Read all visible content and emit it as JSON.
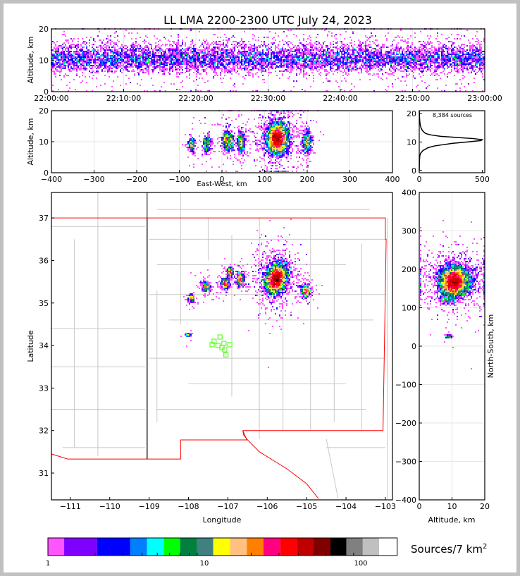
{
  "chart_data": {
    "type": "scatter",
    "title": "LL LMA 2200-2300 UTC July 24, 2023",
    "total_sources_label": "8,384 sources",
    "panels": {
      "time_height": {
        "xlabel": "",
        "ylabel": "Altitude, km",
        "ylim": [
          0,
          20
        ],
        "xlim_minutes": [
          0,
          60
        ],
        "xticks": [
          "22:00:00",
          "22:10:00",
          "22:20:00",
          "22:30:00",
          "22:40:00",
          "22:50:00",
          "23:00:00"
        ],
        "yticks": [
          "0",
          "10",
          "20"
        ]
      },
      "ew_height": {
        "xlabel": "East-West, km",
        "ylabel": "Altitude, km",
        "xlim": [
          -400,
          400
        ],
        "ylim": [
          0,
          20
        ],
        "xticks": [
          "−400",
          "−300",
          "−200",
          "−100",
          "0",
          "100",
          "200",
          "300",
          "400"
        ],
        "yticks": [
          "0",
          "10",
          "20"
        ]
      },
      "alt_histogram": {
        "xlim": [
          0,
          520
        ],
        "ylim": [
          -0.8,
          21
        ],
        "xticks": [
          "0",
          "500"
        ],
        "yticks": [
          "0",
          "10",
          "20"
        ],
        "curve": [
          [
            0,
            0
          ],
          [
            3,
            1
          ],
          [
            5,
            4
          ],
          [
            6,
            10
          ],
          [
            7,
            30
          ],
          [
            8,
            70
          ],
          [
            8.6,
            120
          ],
          [
            9,
            180
          ],
          [
            9.5,
            260
          ],
          [
            10,
            380
          ],
          [
            10.5,
            490
          ],
          [
            10.8,
            500
          ],
          [
            11.2,
            430
          ],
          [
            11.6,
            300
          ],
          [
            12,
            170
          ],
          [
            12.5,
            90
          ],
          [
            13,
            50
          ],
          [
            14,
            25
          ],
          [
            15,
            14
          ],
          [
            16,
            8
          ],
          [
            17,
            5
          ],
          [
            18,
            3
          ],
          [
            19,
            2
          ],
          [
            20,
            1
          ],
          [
            21,
            0
          ]
        ]
      },
      "plan_view": {
        "xlabel": "Longitude",
        "ylabel": "Latitude",
        "xlim": [
          -111.48,
          -102.82
        ],
        "ylim": [
          30.37,
          37.6
        ],
        "xticks": [
          "−111",
          "−110",
          "−109",
          "−108",
          "−107",
          "−106",
          "−105",
          "−104",
          "−103"
        ],
        "yticks": [
          "31",
          "32",
          "33",
          "34",
          "35",
          "36",
          "37"
        ]
      },
      "height_ns": {
        "xlabel": "Altitude, km",
        "ylabel": "North-South, km",
        "xlim": [
          0,
          20
        ],
        "ylim": [
          -400,
          400
        ],
        "xticks": [
          "0",
          "10",
          "20"
        ],
        "yticks": [
          "−400",
          "−300",
          "−200",
          "−100",
          "0",
          "100",
          "200",
          "300",
          "400"
        ]
      }
    },
    "network_center": {
      "lon": -107.18,
      "lat": 34.02
    },
    "stations": [
      [
        -107.2,
        34.2
      ],
      [
        -107.35,
        34.1
      ],
      [
        -107.1,
        34.05
      ],
      [
        -106.95,
        34.02
      ],
      [
        -107.25,
        34.0
      ],
      [
        -107.15,
        33.95
      ],
      [
        -107.4,
        34.02
      ],
      [
        -107.08,
        33.9
      ],
      [
        -107.05,
        33.78
      ]
    ],
    "clusters": [
      {
        "ew": -70,
        "ns": 120,
        "alt": 9,
        "sx": 3,
        "sy": 4,
        "sz": 1.2,
        "n": 220
      },
      {
        "ew": -35,
        "ns": 150,
        "alt": 9.5,
        "sx": 5,
        "sy": 6,
        "sz": 1.5,
        "n": 320
      },
      {
        "ew": 10,
        "ns": 160,
        "alt": 10.5,
        "sx": 4,
        "sy": 6,
        "sz": 1.6,
        "n": 520
      },
      {
        "ew": 22,
        "ns": 190,
        "alt": 10,
        "sx": 3,
        "sy": 5,
        "sz": 1.3,
        "n": 260
      },
      {
        "ew": 45,
        "ns": 170,
        "alt": 10,
        "sx": 4,
        "sy": 8,
        "sz": 1.6,
        "n": 520
      },
      {
        "ew": 130,
        "ns": 172,
        "alt": 11,
        "sx": 9,
        "sy": 16,
        "sz": 2.2,
        "n": 5900
      },
      {
        "ew": 200,
        "ns": 140,
        "alt": 10,
        "sx": 5,
        "sy": 7,
        "sz": 1.7,
        "n": 580
      },
      {
        "ew": -75,
        "ns": 25,
        "alt": 9,
        "sx": 3,
        "sy": 2,
        "sz": 0.5,
        "n": 64
      }
    ],
    "colorbar": {
      "label": "Sources/7 km",
      "label_sup": "2",
      "ticks": [
        "1",
        "10",
        "100"
      ],
      "boundaries": [
        1,
        1.27,
        2.06,
        3.36,
        4.3,
        5.5,
        7.0,
        9.0,
        11.4,
        14.6,
        18.7,
        23.9,
        30.6,
        39,
        49.6,
        64,
        81,
        103,
        131,
        171
      ],
      "colors": [
        "#ff55ff",
        "#8000ff",
        "#0000ff",
        "#0080ff",
        "#00ffff",
        "#00ff00",
        "#008040",
        "#408080",
        "#ffff00",
        "#ffc080",
        "#ff8000",
        "#ff0080",
        "#ff0000",
        "#c00000",
        "#800000",
        "#000000",
        "#808080",
        "#c0c0c0",
        "#ffffff"
      ]
    },
    "colors": {
      "state_border": "#ff0000",
      "county_border": "#c8c8c8",
      "stations": "#66ff33"
    }
  }
}
